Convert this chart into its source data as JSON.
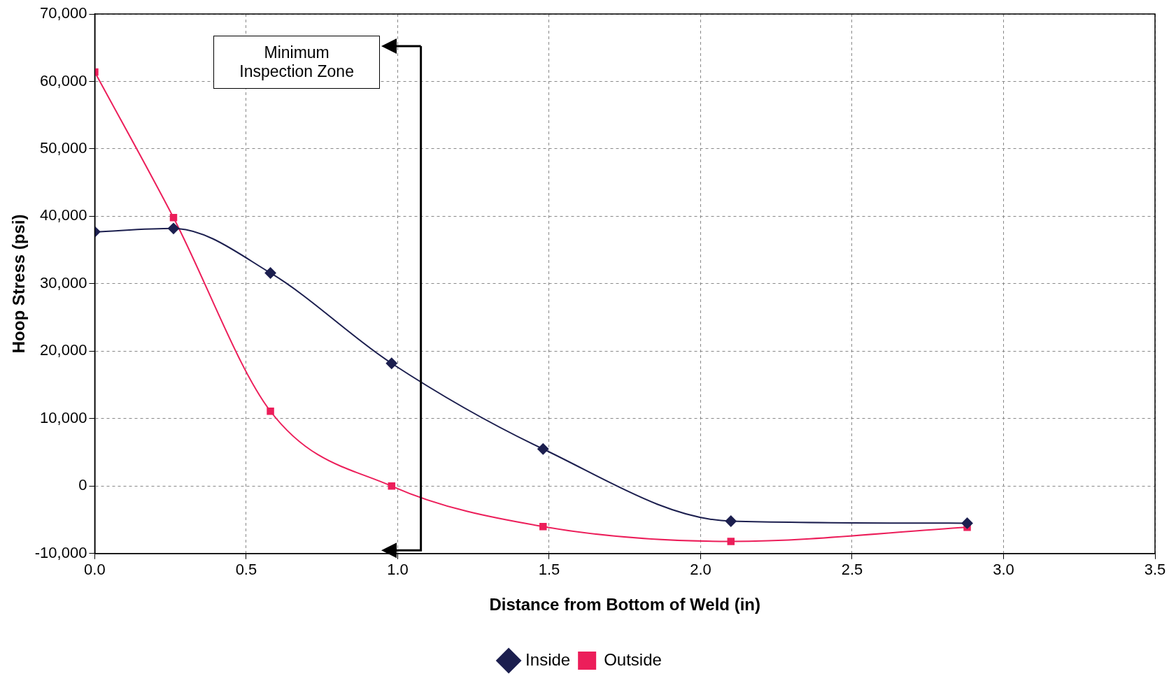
{
  "chart_data": {
    "type": "line",
    "xlabel": "Distance from Bottom of Weld (in)",
    "ylabel": "Hoop Stress (psi)",
    "x": [
      0.0,
      0.26,
      0.58,
      0.98,
      1.48,
      2.1,
      2.88
    ],
    "series": [
      {
        "name": "Inside",
        "color": "#1c1f4f",
        "marker": "diamond",
        "values": [
          37700,
          38200,
          31600,
          18200,
          5500,
          -5200,
          -5500
        ]
      },
      {
        "name": "Outside",
        "color": "#ec1e5a",
        "marker": "square",
        "values": [
          61400,
          39800,
          11100,
          0,
          -6000,
          -8200,
          -6100
        ]
      }
    ],
    "xlim": [
      0,
      3.5
    ],
    "xticks": [
      {
        "value": 0,
        "label": "0.0"
      },
      {
        "value": 0.5,
        "label": "0.5"
      },
      {
        "value": 1,
        "label": "1.0"
      },
      {
        "value": 1.5,
        "label": "1.5"
      },
      {
        "value": 2,
        "label": "2.0"
      },
      {
        "value": 2.5,
        "label": "2.5"
      },
      {
        "value": 3,
        "label": "3.0"
      },
      {
        "value": 3.5,
        "label": "3.5"
      }
    ],
    "ylim": [
      -10000,
      70000
    ],
    "yticks": [
      {
        "value": -10000,
        "label": "-10,000"
      },
      {
        "value": 0,
        "label": "0"
      },
      {
        "value": 10000,
        "label": "10,000"
      },
      {
        "value": 20000,
        "label": "20,000"
      },
      {
        "value": 30000,
        "label": "30,000"
      },
      {
        "value": 40000,
        "label": "40,000"
      },
      {
        "value": 50000,
        "label": "50,000"
      },
      {
        "value": 60000,
        "label": "60,000"
      },
      {
        "value": 70000,
        "label": "70,000"
      }
    ],
    "grid": true,
    "legend": "bottom",
    "line_style": "solid",
    "annotations": [
      "Minimum Inspection Zone"
    ]
  }
}
